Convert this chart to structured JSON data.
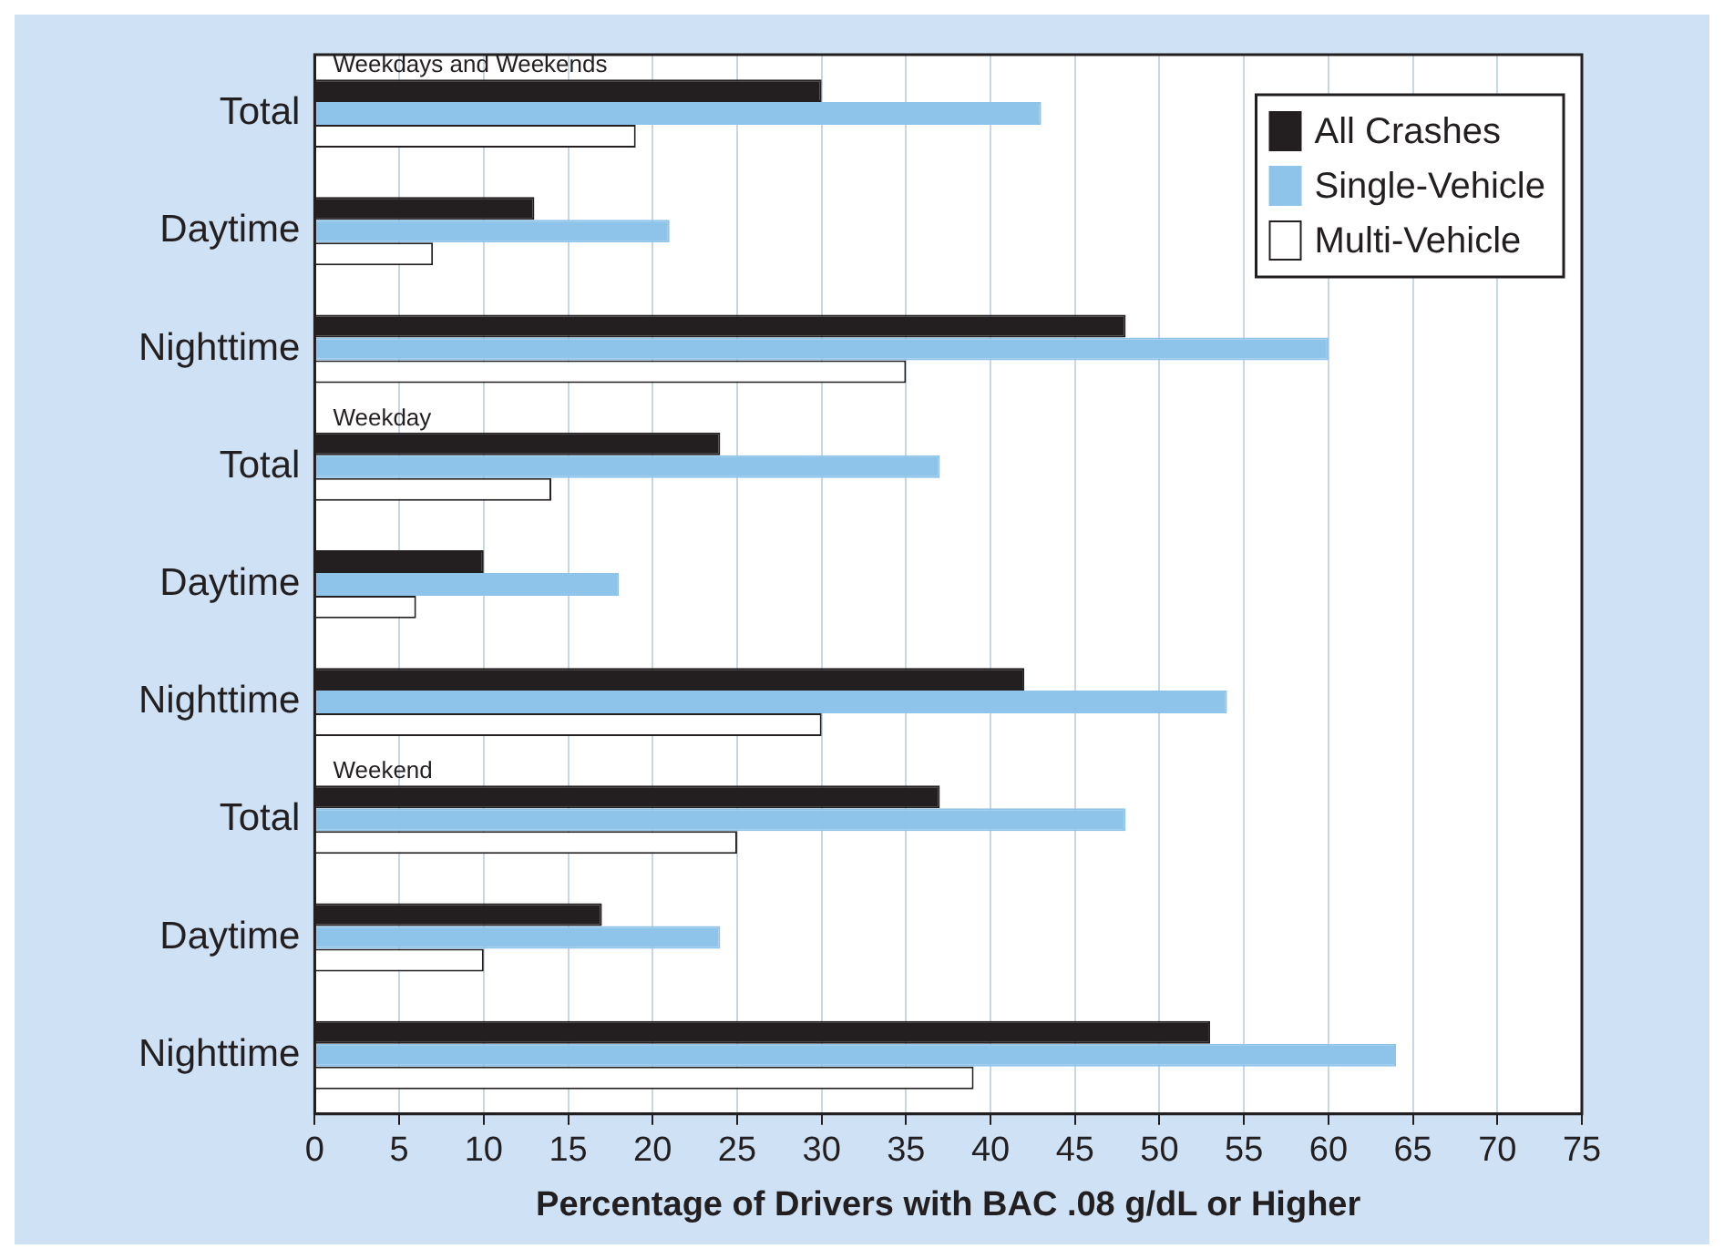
{
  "chart_data": {
    "type": "bar",
    "orientation": "horizontal",
    "xlabel": "Percentage of Drivers with BAC .08 g/dL or Higher",
    "categories": [
      "Total",
      "Daytime",
      "Nighttime",
      "Total",
      "Daytime",
      "Nighttime",
      "Total",
      "Daytime",
      "Nighttime"
    ],
    "series": [
      {
        "name": "All Crashes",
        "color": "#231f20",
        "values": [
          30,
          13,
          48,
          24,
          10,
          42,
          37,
          17,
          53
        ]
      },
      {
        "name": "Single-Vehicle",
        "color": "#8ec3ea",
        "values": [
          43,
          21,
          60,
          37,
          18,
          54,
          48,
          24,
          64
        ]
      },
      {
        "name": "Multi-Vehicle",
        "color": "#ffffff",
        "values": [
          19,
          7,
          35,
          14,
          6,
          30,
          25,
          10,
          39
        ]
      }
    ],
    "annotations": [
      "Weekdays and Weekends",
      "Weekday",
      "Weekend"
    ],
    "xlim": [
      0,
      75
    ],
    "xticks": [
      0,
      5,
      10,
      15,
      20,
      25,
      30,
      35,
      40,
      45,
      50,
      55,
      60,
      65,
      70,
      75
    ],
    "grid": "x",
    "legend": "top right"
  }
}
